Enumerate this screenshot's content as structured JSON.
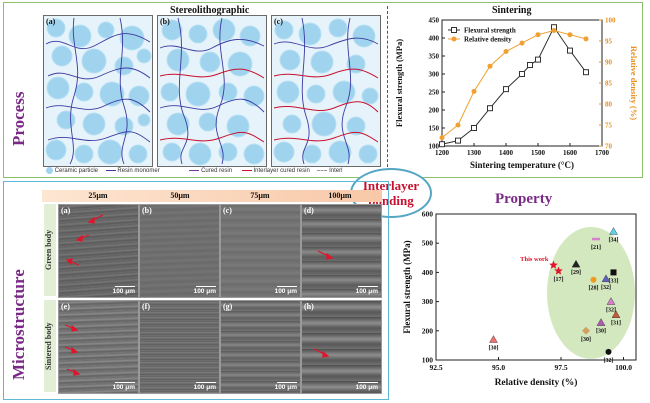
{
  "process_label": "Process",
  "microstructure_label": "Microstructure",
  "stereolithographic": {
    "title": "Stereolithographic",
    "panels": [
      "(a)",
      "(b)",
      "(c)"
    ],
    "legend": [
      "Ceramic particle",
      "Resin monomer",
      "Cured resin",
      "Interlayer cured resin",
      "Interl"
    ]
  },
  "bubble": {
    "line1": "Interlayer",
    "line2": "bonding"
  },
  "sintering": {
    "title": "Sintering",
    "chart_data": {
      "type": "line",
      "xlabel": "Sintering temperature (°C)",
      "ylabel_left": "Flexural strength (MPa)",
      "ylabel_right": "Relative density (%)",
      "xlim": [
        1200,
        1700
      ],
      "ylim_left": [
        100,
        450
      ],
      "ylim_right": [
        70,
        100
      ],
      "x_ticks": [
        1200,
        1300,
        1400,
        1500,
        1600,
        1700
      ],
      "y_ticks_left": [
        100,
        150,
        200,
        250,
        300,
        350,
        400,
        450
      ],
      "y_ticks_right": [
        70,
        75,
        80,
        85,
        90,
        95,
        100
      ],
      "series": [
        {
          "name": "Flexural strength",
          "axis": "left",
          "color": "#333333",
          "x": [
            1200,
            1250,
            1300,
            1350,
            1400,
            1450,
            1475,
            1500,
            1550,
            1600,
            1650
          ],
          "y": [
            105,
            115,
            150,
            205,
            258,
            300,
            325,
            340,
            430,
            365,
            305
          ]
        },
        {
          "name": "Relative density",
          "axis": "right",
          "color": "#f0a030",
          "x": [
            1200,
            1250,
            1300,
            1350,
            1400,
            1450,
            1500,
            1550,
            1600,
            1650
          ],
          "y": [
            72,
            75,
            83,
            89,
            92.5,
            94.5,
            96.5,
            97.5,
            96.5,
            95.5
          ]
        }
      ]
    }
  },
  "micro": {
    "columns": [
      "25μm",
      "50μm",
      "75μm",
      "100μm"
    ],
    "rows": [
      "Green body",
      "Sintered body"
    ],
    "panels": [
      "(a)",
      "(b)",
      "(c)",
      "(d)",
      "(e)",
      "(f)",
      "(g)",
      "(h)"
    ],
    "scale": "100 μm"
  },
  "property": {
    "title": "Property",
    "chart_data": {
      "type": "scatter",
      "xlabel": "Relative density (%)",
      "ylabel": "Flexural strength (MPa)",
      "xlim": [
        92.5,
        100.5
      ],
      "ylim": [
        100,
        600
      ],
      "x_ticks": [
        92.5,
        95.0,
        97.5,
        100.0
      ],
      "y_ticks": [
        100,
        200,
        300,
        400,
        500,
        600
      ],
      "points": [
        {
          "label": "This work",
          "x": 97.2,
          "y": 425,
          "color": "#e0142a",
          "shape": "star"
        },
        {
          "label": "[17]",
          "x": 97.4,
          "y": 405,
          "color": "#e0142a",
          "shape": "star"
        },
        {
          "label": "[29]",
          "x": 98.1,
          "y": 428,
          "color": "#222222",
          "shape": "triangle"
        },
        {
          "label": "[21]",
          "x": 98.9,
          "y": 515,
          "color": "#d580c8",
          "shape": "dash"
        },
        {
          "label": "[34]",
          "x": 99.6,
          "y": 540,
          "color": "#5fd0e8",
          "shape": "triangle"
        },
        {
          "label": "[33]",
          "x": 99.6,
          "y": 400,
          "color": "#111111",
          "shape": "square"
        },
        {
          "label": "[28]",
          "x": 98.8,
          "y": 375,
          "color": "#f09a20",
          "shape": "circle"
        },
        {
          "label": "[32]",
          "x": 99.3,
          "y": 378,
          "color": "#6060c0",
          "shape": "triangle"
        },
        {
          "label": "[32]",
          "x": 99.5,
          "y": 300,
          "color": "#d580c8",
          "shape": "triangle"
        },
        {
          "label": "[31]",
          "x": 99.7,
          "y": 255,
          "color": "#c25a3a",
          "shape": "triangle"
        },
        {
          "label": "[30]",
          "x": 99.1,
          "y": 228,
          "color": "#b05ab0",
          "shape": "triangle"
        },
        {
          "label": "[30]",
          "x": 98.5,
          "y": 200,
          "color": "#d2a060",
          "shape": "diamond"
        },
        {
          "label": "[32]",
          "x": 99.4,
          "y": 128,
          "color": "#111111",
          "shape": "circle"
        },
        {
          "label": "[30]",
          "x": 94.8,
          "y": 170,
          "color": "#f07070",
          "shape": "triangle"
        }
      ]
    }
  }
}
